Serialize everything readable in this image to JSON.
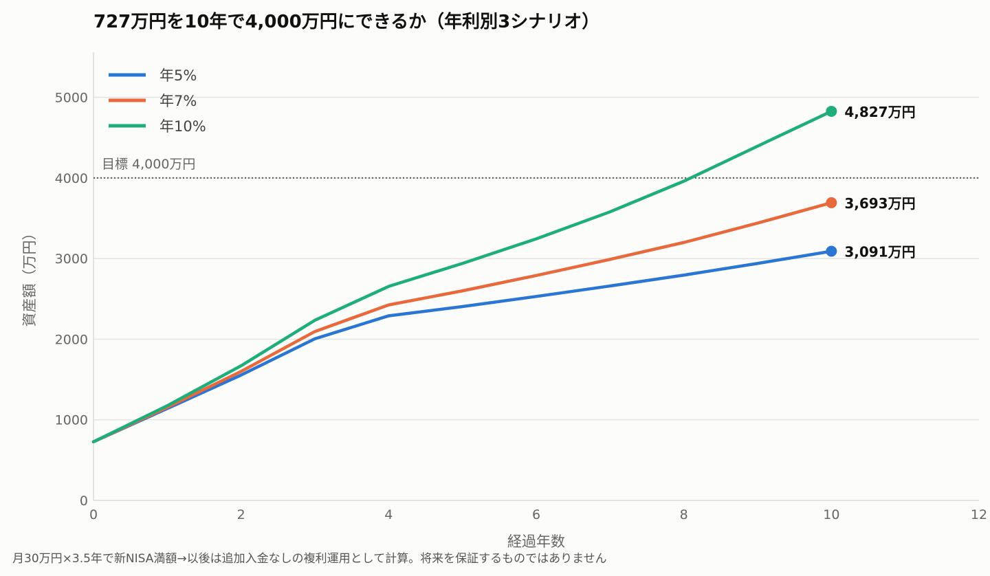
{
  "chart_data": {
    "type": "line",
    "title": "727万円を10年で4,000万円にできるか（年利別3シナリオ）",
    "xlabel": "経過年数",
    "ylabel": "資産額（万円）",
    "xlim": [
      0,
      12
    ],
    "ylim": [
      0,
      5560
    ],
    "x_ticks": [
      "0",
      "2",
      "4",
      "6",
      "8",
      "10",
      "12"
    ],
    "y_ticks": [
      "0",
      "1000",
      "2000",
      "3000",
      "4000",
      "5000"
    ],
    "grid": "horizontal",
    "legend_position": "top-left",
    "x": [
      0,
      1,
      2,
      3,
      4,
      5,
      6,
      7,
      8,
      9,
      10
    ],
    "series": [
      {
        "name": "年5%",
        "color": "#2b76d2",
        "values": [
          727,
          1140,
          1555,
          2005,
          2290,
          2405,
          2530,
          2660,
          2795,
          2940,
          3091
        ],
        "end_label": "3,091万円"
      },
      {
        "name": "年7%",
        "color": "#e8693c",
        "values": [
          727,
          1155,
          1600,
          2095,
          2425,
          2600,
          2790,
          2990,
          3200,
          3440,
          3693
        ],
        "end_label": "3,693万円"
      },
      {
        "name": "年10%",
        "color": "#1fad7b",
        "values": [
          727,
          1175,
          1670,
          2235,
          2655,
          2940,
          3245,
          3580,
          3960,
          4395,
          4827
        ],
        "end_label": "4,827万円"
      }
    ],
    "target": {
      "value": 4000,
      "label": "目標 4,000万円",
      "color": "#555555"
    },
    "footnote": "月30万円×3.5年で新NISA満額→以後は追加入金なしの複利運用として計算。将来を保証するものではありません"
  }
}
